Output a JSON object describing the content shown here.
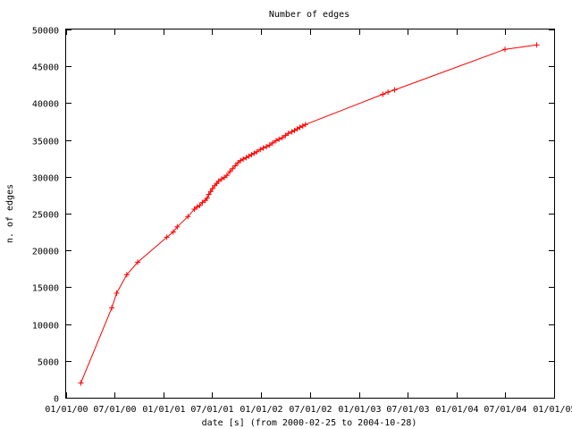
{
  "chart_data": {
    "type": "line",
    "title": "Number of edges",
    "xlabel": "date [s] (from 2000-02-25 to 2004-10-28)",
    "ylabel": "n. of edges",
    "x_type": "date",
    "xlim": [
      "2000-01-01",
      "2005-01-01"
    ],
    "ylim": [
      0,
      50000
    ],
    "yticks": [
      0,
      5000,
      10000,
      15000,
      20000,
      25000,
      30000,
      35000,
      40000,
      45000,
      50000
    ],
    "xticks": [
      "2000-01-01",
      "2000-07-01",
      "2001-01-01",
      "2001-07-01",
      "2002-01-01",
      "2002-07-01",
      "2003-01-01",
      "2003-07-01",
      "2004-01-01",
      "2004-07-01",
      "2005-01-01"
    ],
    "xtick_labels": [
      "01/01/00",
      "07/01/00",
      "01/01/01",
      "07/01/01",
      "01/01/02",
      "07/01/02",
      "01/01/03",
      "07/01/03",
      "01/01/04",
      "07/01/04",
      "01/01/05"
    ],
    "grid": false,
    "legend": "none",
    "series_color": "#ff0000",
    "series": [
      {
        "x": [
          "2000-02-25",
          "2000-06-20",
          "2000-07-08",
          "2000-08-15",
          "2000-09-25",
          "2001-01-12",
          "2001-02-05",
          "2001-02-20",
          "2001-04-01",
          "2001-04-25",
          "2001-05-05",
          "2001-05-15",
          "2001-05-25",
          "2001-06-05",
          "2001-06-12",
          "2001-06-18",
          "2001-06-25",
          "2001-07-02",
          "2001-07-10",
          "2001-07-18",
          "2001-07-25",
          "2001-08-05",
          "2001-08-15",
          "2001-08-25",
          "2001-09-05",
          "2001-09-15",
          "2001-09-25",
          "2001-10-05",
          "2001-10-15",
          "2001-10-25",
          "2001-11-05",
          "2001-11-15",
          "2001-11-25",
          "2001-12-05",
          "2001-12-15",
          "2001-12-28",
          "2002-01-08",
          "2002-01-20",
          "2002-02-01",
          "2002-02-12",
          "2002-02-25",
          "2002-03-08",
          "2002-03-20",
          "2002-04-01",
          "2002-04-12",
          "2002-04-25",
          "2002-05-05",
          "2002-05-15",
          "2002-05-25",
          "2002-06-05",
          "2002-06-15",
          "2003-04-01",
          "2003-04-20",
          "2003-05-15",
          "2004-07-01",
          "2004-10-28"
        ],
        "y": [
          2000,
          12200,
          14200,
          16700,
          18400,
          21800,
          22500,
          23200,
          24600,
          25600,
          25900,
          26100,
          26500,
          26800,
          27100,
          27600,
          28000,
          28400,
          28800,
          29100,
          29400,
          29700,
          29900,
          30200,
          30700,
          31100,
          31500,
          31900,
          32200,
          32400,
          32600,
          32800,
          33000,
          33200,
          33400,
          33700,
          33900,
          34100,
          34300,
          34600,
          34900,
          35100,
          35300,
          35600,
          35900,
          36100,
          36300,
          36500,
          36700,
          36900,
          37100,
          41200,
          41500,
          41800,
          47300,
          47900
        ]
      }
    ]
  }
}
